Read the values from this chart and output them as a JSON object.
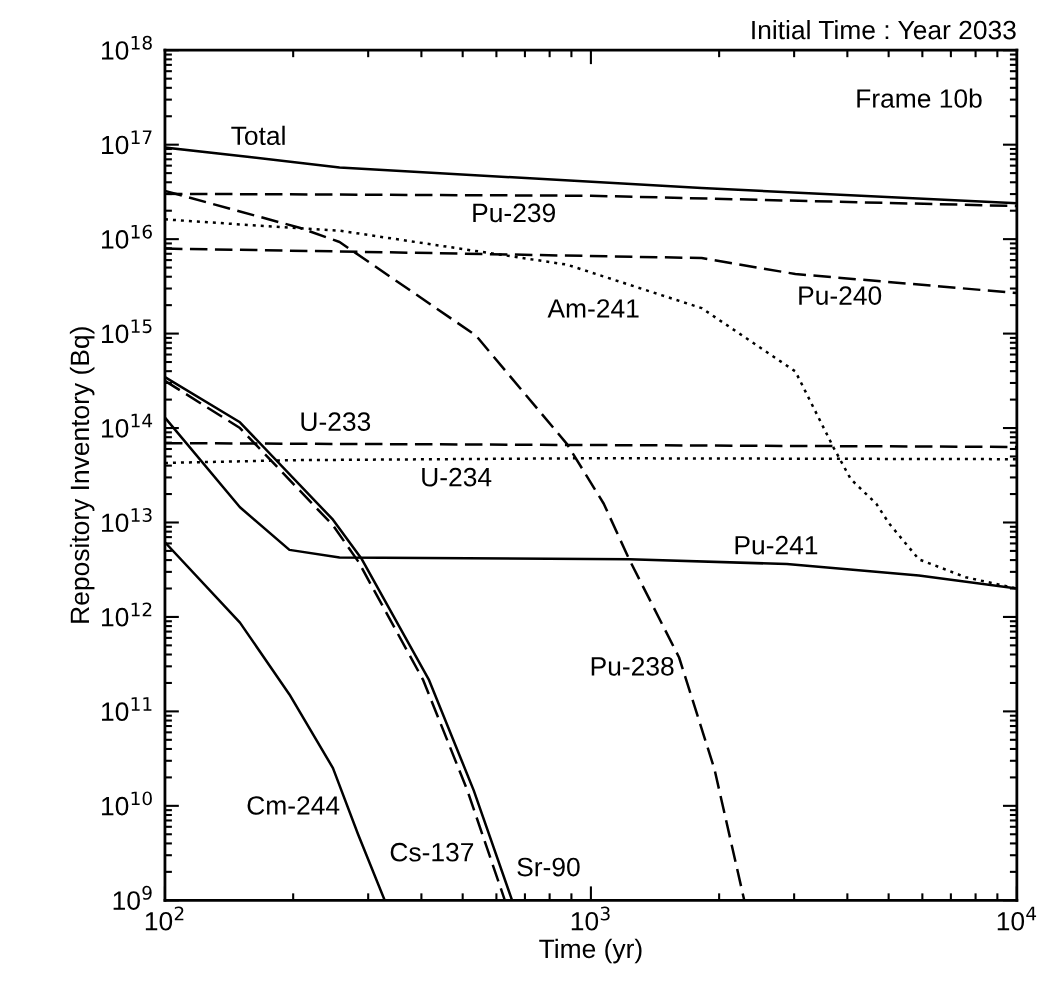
{
  "chart_data": {
    "type": "line",
    "title": "Initial Time : Year 2033",
    "xlabel": "Time (yr)",
    "ylabel": "Repository Inventory (Bq)",
    "log": "xy",
    "grid": false,
    "xlim": [
      100,
      10000
    ],
    "ylim": [
      1000000000.0,
      1e+18
    ],
    "xticks": [
      {
        "value": 100,
        "label": "10$^{2}$"
      },
      {
        "value": 1000,
        "label": "10$^{3}$"
      },
      {
        "value": 10000,
        "label": "10$^{4}$"
      }
    ],
    "yticks": [
      {
        "value": 1000000000.0,
        "label": "10$^{9}$"
      },
      {
        "value": 10000000000.0,
        "label": "10$^{10}$"
      },
      {
        "value": 100000000000.0,
        "label": "10$^{11}$"
      },
      {
        "value": 1000000000000.0,
        "label": "10$^{12}$"
      },
      {
        "value": 10000000000000.0,
        "label": "10$^{13}$"
      },
      {
        "value": 100000000000000.0,
        "label": "10$^{14}$"
      },
      {
        "value": 1000000000000000.0,
        "label": "10$^{15}$"
      },
      {
        "value": 1e+16,
        "label": "10$^{16}$"
      },
      {
        "value": 1e+17,
        "label": "10$^{17}$"
      },
      {
        "value": 1e+18,
        "label": "10$^{18}$"
      }
    ],
    "series": [
      {
        "name": "Total",
        "color": "#000000",
        "line_style": "solid",
        "x": [
          100,
          158,
          257,
          1820,
          10000
        ],
        "values": [
          9.33e+16,
          7.41e+16,
          5.75e+16,
          3.47e+16,
          2.4e+16
        ]
      },
      {
        "name": "Pu-239",
        "color": "#000000",
        "line_style": "dashed",
        "x": [
          100,
          1000,
          10000
        ],
        "values": [
          3.02e+16,
          2.88e+16,
          2.24e+16
        ]
      },
      {
        "name": "Pu-240",
        "color": "#000000",
        "line_style": "dashed",
        "x": [
          100,
          257,
          1820,
          3020,
          10000
        ],
        "values": [
          7940000000000000.0,
          7410000000000000.0,
          6310000000000000.0,
          4270000000000000.0,
          2690000000000000.0
        ]
      },
      {
        "name": "Am-241",
        "color": "#000000",
        "line_style": "dotted",
        "x": [
          100,
          158,
          257,
          879,
          1820,
          3020,
          3715,
          4074,
          4677,
          5012,
          5888,
          7586,
          10000
        ],
        "values": [
          1.62e+16,
          1.41e+16,
          1.23e+16,
          5370000000000000.0,
          1860000000000000.0,
          398000000000000.0,
          61700000000000.0,
          28800000000000.0,
          15800000000000.0,
          9770000000000.0,
          4070000000000.0,
          2630000000000.0,
          2000000000000.0
        ]
      },
      {
        "name": "Pu-238",
        "color": "#000000",
        "line_style": "dashed",
        "x": [
          100,
          207,
          257,
          537,
          879,
          1072,
          1230,
          1611,
          1950,
          2291
        ],
        "values": [
          3.24e+16,
          1.32e+16,
          9330000000000000.0,
          955000000000000.0,
          67600000000000.0,
          15800000000000.0,
          4070000000000.0,
          372000000000.0,
          24500000000.0,
          1000000000.0
        ]
      },
      {
        "name": "U-233",
        "color": "#000000",
        "line_style": "dashed",
        "x": [
          100,
          10000
        ],
        "values": [
          69200000000000.0,
          63100000000000.0
        ]
      },
      {
        "name": "U-234",
        "color": "#000000",
        "line_style": "dotted",
        "x": [
          100,
          200,
          1000,
          10000
        ],
        "values": [
          42700000000000.0,
          45700000000000.0,
          47900000000000.0,
          46800000000000.0
        ]
      },
      {
        "name": "Pu-241",
        "color": "#000000",
        "line_style": "solid",
        "x": [
          100,
          150,
          196,
          257,
          1230,
          2884,
          5888,
          10000
        ],
        "values": [
          129000000000000.0,
          14500000000000.0,
          5130000000000.0,
          4270000000000.0,
          4070000000000.0,
          3630000000000.0,
          2750000000000.0,
          2000000000000.0
        ]
      },
      {
        "name": "Sr-90",
        "color": "#000000",
        "line_style": "solid",
        "x": [
          100,
          150,
          248,
          290,
          417,
          531,
          653
        ],
        "values": [
          347000000000000.0,
          115000000000000.0,
          10700000000000.0,
          4070000000000.0,
          214000000000.0,
          14500000000.0,
          1000000000.0
        ]
      },
      {
        "name": "Cs-137",
        "color": "#000000",
        "line_style": "dashed",
        "x": [
          100,
          150,
          248,
          285,
          404,
          513,
          628
        ],
        "values": [
          316000000000000.0,
          100000000000000.0,
          9330000000000.0,
          3800000000000.0,
          214000000000.0,
          14500000000.0,
          1000000000.0
        ]
      },
      {
        "name": "Cm-244",
        "color": "#000000",
        "line_style": "solid",
        "x": [
          100,
          150,
          196,
          248,
          284,
          328
        ],
        "values": [
          6170000000000.0,
          871000000000.0,
          151000000000.0,
          25100000000.0,
          5010000000.0,
          1000000000.0
        ]
      }
    ],
    "annotations": [
      "Frame 10b"
    ]
  }
}
